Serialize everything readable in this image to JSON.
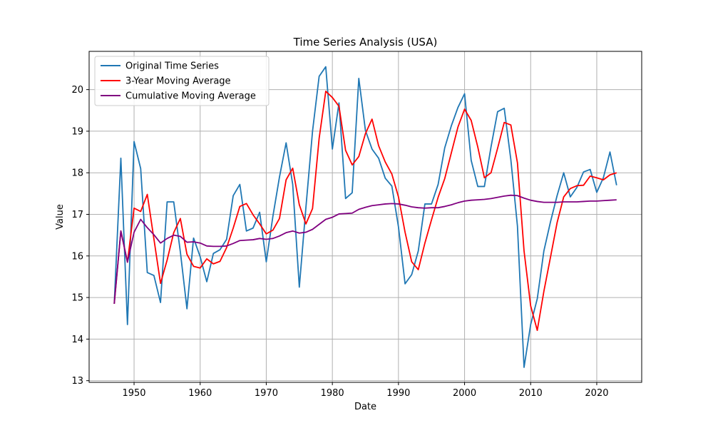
{
  "chart_data": {
    "type": "line",
    "title": "Time Series Analysis (USA)",
    "xlabel": "Date",
    "ylabel": "Value",
    "xlim": [
      1943.2,
      2026.8
    ],
    "ylim": [
      12.96,
      20.92
    ],
    "x_ticks": [
      1950,
      1960,
      1970,
      1980,
      1990,
      2000,
      2010,
      2020
    ],
    "y_ticks": [
      13,
      14,
      15,
      16,
      17,
      18,
      19,
      20
    ],
    "grid": true,
    "legend_position": "top-left",
    "x": [
      1947,
      1948,
      1949,
      1950,
      1951,
      1952,
      1953,
      1954,
      1955,
      1956,
      1957,
      1958,
      1959,
      1960,
      1961,
      1962,
      1963,
      1964,
      1965,
      1966,
      1967,
      1968,
      1969,
      1970,
      1971,
      1972,
      1973,
      1974,
      1975,
      1976,
      1977,
      1978,
      1979,
      1980,
      1981,
      1982,
      1983,
      1984,
      1985,
      1986,
      1987,
      1988,
      1989,
      1990,
      1991,
      1992,
      1993,
      1994,
      1995,
      1996,
      1997,
      1998,
      1999,
      2000,
      2001,
      2002,
      2003,
      2004,
      2005,
      2006,
      2007,
      2008,
      2009,
      2010,
      2011,
      2012,
      2013,
      2014,
      2015,
      2016,
      2017,
      2018,
      2019,
      2020,
      2021,
      2022,
      2023
    ],
    "series": [
      {
        "name": "Original Time Series",
        "color": "#1f77b4",
        "values": [
          14.85,
          18.35,
          14.35,
          18.75,
          18.1,
          15.6,
          15.53,
          14.88,
          17.3,
          17.3,
          16.1,
          14.73,
          16.43,
          15.98,
          15.38,
          16.06,
          16.15,
          16.4,
          17.45,
          17.72,
          16.6,
          16.67,
          17.05,
          15.86,
          16.95,
          17.9,
          18.72,
          17.72,
          15.25,
          17.17,
          19.0,
          20.32,
          20.55,
          18.57,
          19.68,
          17.38,
          17.52,
          20.27,
          19.02,
          18.57,
          18.35,
          17.87,
          17.68,
          16.7,
          15.33,
          15.55,
          16.12,
          17.25,
          17.25,
          17.72,
          18.6,
          19.13,
          19.57,
          19.9,
          18.3,
          17.67,
          17.67,
          18.62,
          19.47,
          19.55,
          18.32,
          16.72,
          13.32,
          14.35,
          14.97,
          16.12,
          16.82,
          17.45,
          18.0,
          17.42,
          17.65,
          18.02,
          18.08,
          17.53,
          17.88,
          18.5,
          17.7
        ]
      },
      {
        "name": "3-Year Moving Average",
        "color": "#ff0000",
        "values": [
          14.85,
          16.6,
          15.85,
          17.15,
          17.07,
          17.48,
          16.41,
          15.34,
          15.9,
          16.56,
          16.9,
          16.04,
          15.75,
          15.71,
          15.93,
          15.81,
          15.87,
          16.2,
          16.67,
          17.19,
          17.26,
          16.99,
          16.77,
          16.53,
          16.62,
          16.9,
          17.83,
          18.11,
          17.23,
          16.77,
          17.14,
          18.83,
          19.96,
          19.81,
          19.6,
          18.54,
          18.19,
          18.39,
          18.94,
          19.29,
          18.65,
          18.26,
          17.97,
          17.42,
          16.57,
          15.86,
          15.67,
          16.31,
          16.87,
          17.41,
          17.86,
          18.48,
          19.1,
          19.53,
          19.26,
          18.62,
          17.88,
          18.0,
          18.59,
          19.21,
          19.15,
          18.24,
          16.12,
          14.8,
          14.21,
          15.15,
          15.97,
          16.8,
          17.42,
          17.62,
          17.69,
          17.7,
          17.92,
          17.88,
          17.83,
          17.95,
          18.0
        ]
      },
      {
        "name": "Cumulative Moving Average",
        "color": "#800080",
        "values": [
          14.85,
          16.6,
          15.85,
          16.57,
          16.88,
          16.68,
          16.51,
          16.31,
          16.42,
          16.5,
          16.47,
          16.33,
          16.34,
          16.31,
          16.24,
          16.23,
          16.23,
          16.24,
          16.3,
          16.37,
          16.38,
          16.39,
          16.42,
          16.4,
          16.42,
          16.48,
          16.56,
          16.6,
          16.55,
          16.57,
          16.64,
          16.76,
          16.88,
          16.93,
          17.01,
          17.02,
          17.03,
          17.12,
          17.17,
          17.21,
          17.23,
          17.25,
          17.26,
          17.25,
          17.22,
          17.18,
          17.16,
          17.15,
          17.16,
          17.16,
          17.19,
          17.23,
          17.28,
          17.32,
          17.34,
          17.35,
          17.36,
          17.38,
          17.41,
          17.44,
          17.46,
          17.45,
          17.39,
          17.34,
          17.31,
          17.29,
          17.29,
          17.29,
          17.3,
          17.3,
          17.3,
          17.31,
          17.32,
          17.32,
          17.33,
          17.34,
          17.35
        ]
      }
    ]
  }
}
